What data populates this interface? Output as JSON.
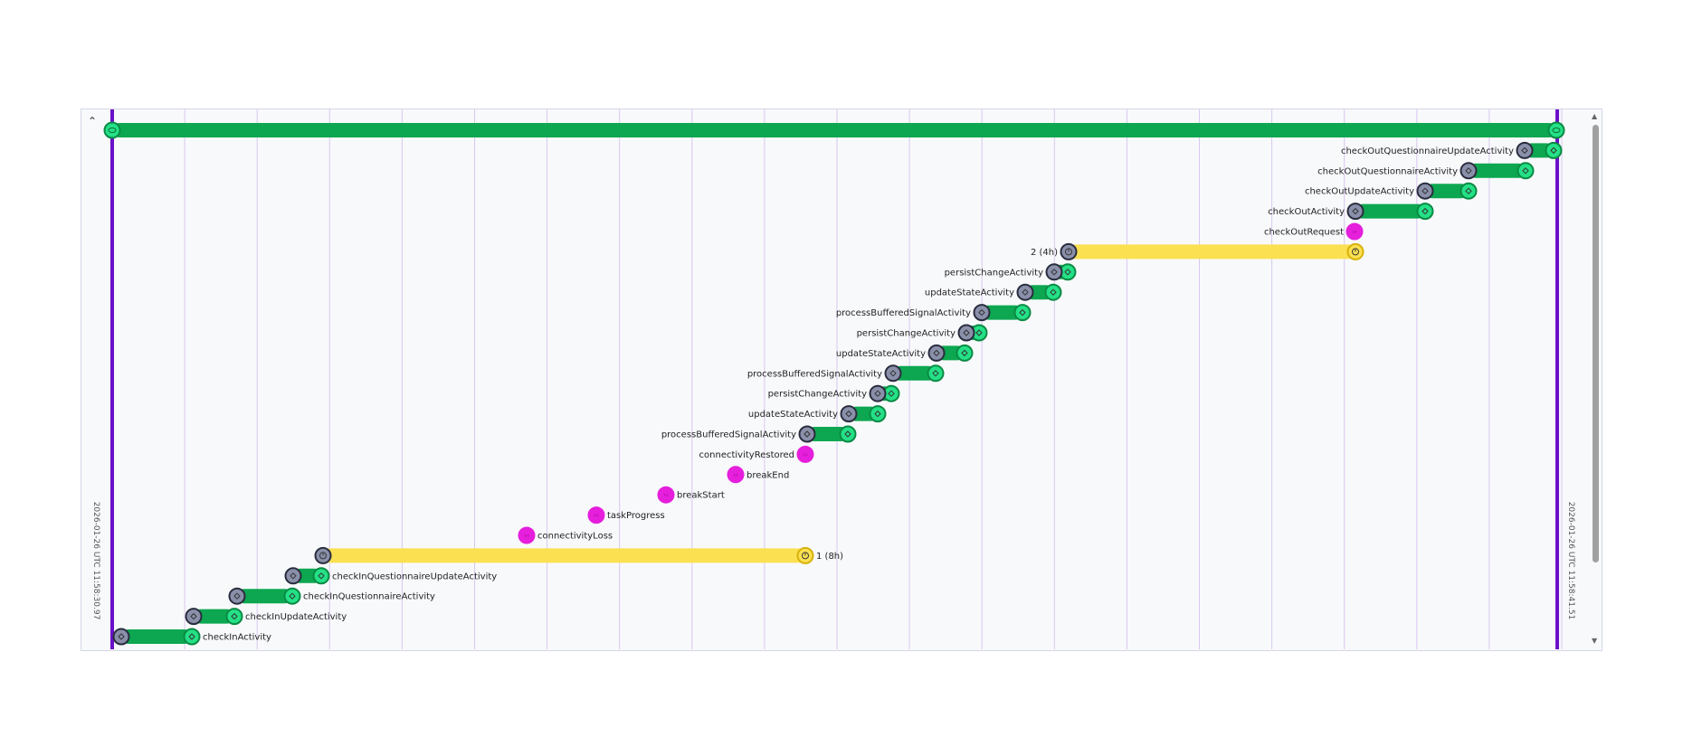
{
  "timeline": {
    "start_label": "2026-01-26 UTC 11:58:30.97",
    "end_label": "2026-01-26 UTC 11:58:41.51",
    "colors": {
      "activity": "#0ca750",
      "activity_end": "#24e086",
      "activity_start": "#8a90aa",
      "timer": "#fbe052",
      "signal": "#e51fdb",
      "boundary": "#6a10c8",
      "grid": "#d9c8ef"
    },
    "rows": [
      {
        "kind": "workflow",
        "label": ""
      },
      {
        "kind": "activity",
        "label": "checkOutQuestionnaireUpdateActivity"
      },
      {
        "kind": "activity",
        "label": "checkOutQuestionnaireActivity"
      },
      {
        "kind": "activity",
        "label": "checkOutUpdateActivity"
      },
      {
        "kind": "activity",
        "label": "checkOutActivity"
      },
      {
        "kind": "signal",
        "label": "checkOutRequest"
      },
      {
        "kind": "timer",
        "label": "2 (4h)"
      },
      {
        "kind": "activity",
        "label": "persistChangeActivity"
      },
      {
        "kind": "activity",
        "label": "updateStateActivity"
      },
      {
        "kind": "activity",
        "label": "processBufferedSignalActivity"
      },
      {
        "kind": "activity",
        "label": "persistChangeActivity"
      },
      {
        "kind": "activity",
        "label": "updateStateActivity"
      },
      {
        "kind": "activity",
        "label": "processBufferedSignalActivity"
      },
      {
        "kind": "activity",
        "label": "persistChangeActivity"
      },
      {
        "kind": "activity",
        "label": "updateStateActivity"
      },
      {
        "kind": "activity",
        "label": "processBufferedSignalActivity"
      },
      {
        "kind": "signal",
        "label": "connectivityRestored"
      },
      {
        "kind": "signal",
        "label": "breakEnd"
      },
      {
        "kind": "signal",
        "label": "breakStart"
      },
      {
        "kind": "signal",
        "label": "taskProgress"
      },
      {
        "kind": "signal",
        "label": "connectivityLoss"
      },
      {
        "kind": "timer",
        "label": "1 (8h)"
      },
      {
        "kind": "activity",
        "label": "checkInQuestionnaireUpdateActivity"
      },
      {
        "kind": "activity",
        "label": "checkInQuestionnaireActivity"
      },
      {
        "kind": "activity",
        "label": "checkInUpdateActivity"
      },
      {
        "kind": "activity",
        "label": "checkInActivity"
      }
    ]
  }
}
